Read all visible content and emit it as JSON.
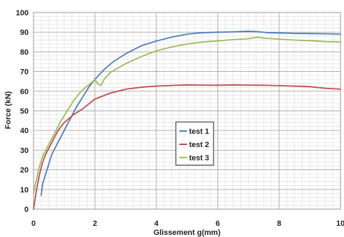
{
  "chart_data": {
    "type": "line",
    "xlabel": "Glissement  g(mm)",
    "ylabel": "Force (kN)",
    "xlim": [
      0,
      10
    ],
    "ylim": [
      0,
      100
    ],
    "x_ticks": [
      0,
      2,
      4,
      6,
      8,
      10
    ],
    "y_ticks": [
      0,
      10,
      20,
      30,
      40,
      50,
      60,
      70,
      80,
      90,
      100
    ],
    "grid": true,
    "legend_position": "center",
    "series": [
      {
        "name": "test 1",
        "color": "#4a7ebb",
        "x": [
          0.25,
          0.3,
          0.4,
          0.5,
          0.6,
          0.8,
          1.0,
          1.2,
          1.4,
          1.6,
          1.8,
          2.0,
          2.3,
          2.6,
          3.0,
          3.5,
          4.0,
          4.5,
          5.0,
          5.3,
          5.6,
          6.0,
          6.5,
          7.0,
          7.3,
          7.6,
          8.0,
          8.5,
          9.0,
          9.5,
          10.0
        ],
        "y": [
          7,
          13,
          18,
          23,
          28,
          34,
          40,
          46,
          52,
          57,
          62,
          66,
          71,
          75,
          79,
          83,
          85.5,
          87.5,
          89,
          89.5,
          89.8,
          90,
          90.2,
          90.5,
          90.3,
          89.8,
          89.6,
          89.4,
          89.3,
          89.2,
          89
        ]
      },
      {
        "name": "test 2",
        "color": "#be4b48",
        "x": [
          0.0,
          0.05,
          0.1,
          0.15,
          0.2,
          0.3,
          0.4,
          0.5,
          0.6,
          0.8,
          1.0,
          1.3,
          1.6,
          2.0,
          2.5,
          3.0,
          3.5,
          4.0,
          4.5,
          5.0,
          5.5,
          6.0,
          6.5,
          7.0,
          7.5,
          8.0,
          8.5,
          9.0,
          9.5,
          10.0
        ],
        "y": [
          0,
          5,
          10,
          14,
          18,
          24,
          28,
          31,
          34,
          40,
          44,
          48,
          51,
          56,
          59,
          61,
          62,
          62.6,
          62.9,
          63.2,
          63.1,
          63,
          63.2,
          63.1,
          63.0,
          62.8,
          62.6,
          62.3,
          61.5,
          61
        ]
      },
      {
        "name": "test 3",
        "color": "#9bbb59",
        "x": [
          0.0,
          0.05,
          0.1,
          0.15,
          0.2,
          0.3,
          0.5,
          0.7,
          0.9,
          1.1,
          1.3,
          1.5,
          1.7,
          1.9,
          2.0,
          2.1,
          2.2,
          2.3,
          2.5,
          3.0,
          3.5,
          4.0,
          4.5,
          5.0,
          5.5,
          6.0,
          6.5,
          7.0,
          7.3,
          7.5,
          8.0,
          8.5,
          9.0,
          9.5,
          10.0
        ],
        "y": [
          8,
          12,
          15,
          19,
          22,
          27,
          33,
          39,
          45,
          50,
          55,
          59,
          62,
          64.5,
          66,
          63.5,
          63,
          66,
          69.5,
          74,
          77.5,
          80.5,
          82.5,
          84,
          85,
          85.6,
          86.2,
          86.7,
          87.5,
          87,
          86.5,
          86,
          85.7,
          85.2,
          85
        ]
      }
    ]
  }
}
